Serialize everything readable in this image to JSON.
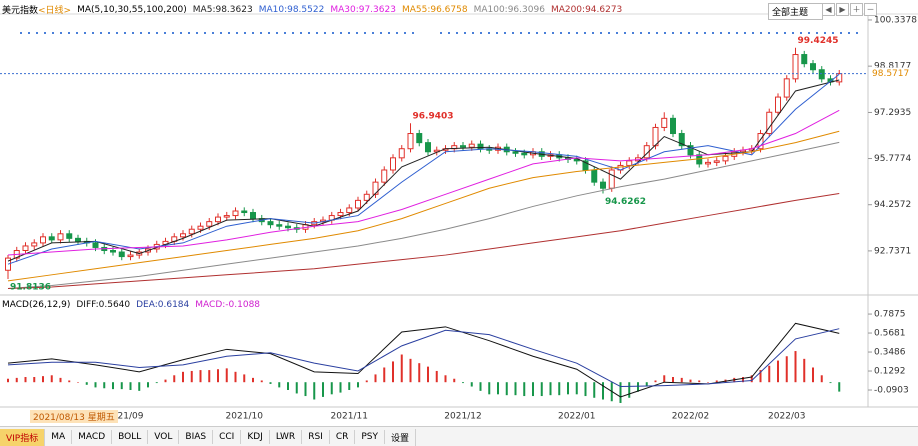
{
  "chart_data": {
    "type": "candlestick",
    "title": "美元指数",
    "period": "<日线>",
    "ma_params": "MA(5,10,30,55,100,200)",
    "theme_button": "全部主题",
    "up_color": "#e0302a",
    "down_color": "#17964a",
    "ylim": [
      91.45,
      100.6
    ],
    "yticks": [
      100.3378,
      98.8177,
      97.2935,
      95.7774,
      94.2572,
      92.7371
    ],
    "candles": {
      "open": [
        92.1,
        92.5,
        92.75,
        92.9,
        93.0,
        93.2,
        93.1,
        93.3,
        93.15,
        93.05,
        93.0,
        92.85,
        92.75,
        92.7,
        92.55,
        92.6,
        92.7,
        92.8,
        92.95,
        93.05,
        93.2,
        93.3,
        93.45,
        93.55,
        93.7,
        93.85,
        93.9,
        94.05,
        94.0,
        93.8,
        93.7,
        93.6,
        93.55,
        93.5,
        93.45,
        93.6,
        93.7,
        93.75,
        93.9,
        94.0,
        94.15,
        94.4,
        94.6,
        95.0,
        95.4,
        95.8,
        96.1,
        96.6,
        96.3,
        96.0,
        96.05,
        96.1,
        96.2,
        96.15,
        96.25,
        96.1,
        96.05,
        96.15,
        96.0,
        95.95,
        95.9,
        96.0,
        95.85,
        95.9,
        95.8,
        95.75,
        95.7,
        95.4,
        95.0,
        94.8,
        95.4,
        95.55,
        95.7,
        95.8,
        96.2,
        96.8,
        97.1,
        96.6,
        96.2,
        95.9,
        95.6,
        95.65,
        95.7,
        95.85,
        96.0,
        96.05,
        96.1,
        96.6,
        97.3,
        97.8,
        98.4,
        99.2,
        98.9,
        98.7,
        98.4,
        98.3
      ],
      "high": [
        92.6,
        92.87,
        93.02,
        93.12,
        93.32,
        93.32,
        93.42,
        93.42,
        93.27,
        93.17,
        93.12,
        92.97,
        92.87,
        92.82,
        92.72,
        92.82,
        92.92,
        93.07,
        93.17,
        93.32,
        93.42,
        93.57,
        93.67,
        93.82,
        93.97,
        94.02,
        94.17,
        94.17,
        94.12,
        93.92,
        93.82,
        93.72,
        93.67,
        93.62,
        93.72,
        93.82,
        93.87,
        94.02,
        94.12,
        94.27,
        94.52,
        94.72,
        95.12,
        95.52,
        95.92,
        96.22,
        96.9403,
        96.72,
        96.42,
        96.17,
        96.22,
        96.32,
        96.32,
        96.37,
        96.37,
        96.22,
        96.27,
        96.27,
        96.12,
        96.07,
        96.12,
        96.12,
        96.02,
        96.02,
        95.92,
        95.87,
        95.82,
        95.52,
        95.12,
        95.52,
        95.67,
        95.82,
        95.92,
        96.32,
        96.92,
        97.3,
        97.22,
        96.72,
        96.32,
        96.02,
        95.77,
        95.82,
        95.97,
        96.12,
        96.17,
        96.22,
        96.72,
        97.42,
        97.92,
        98.52,
        99.4245,
        99.32,
        99.02,
        98.82,
        98.52,
        98.69
      ],
      "low": [
        91.8136,
        92.38,
        92.63,
        92.78,
        92.88,
        92.98,
        92.98,
        93.03,
        92.93,
        92.88,
        92.73,
        92.63,
        92.58,
        92.43,
        92.43,
        92.48,
        92.58,
        92.68,
        92.83,
        92.93,
        93.08,
        93.18,
        93.33,
        93.43,
        93.58,
        93.73,
        93.78,
        93.88,
        93.68,
        93.58,
        93.48,
        93.43,
        93.38,
        93.33,
        93.33,
        93.48,
        93.58,
        93.63,
        93.78,
        93.88,
        94.03,
        94.28,
        94.48,
        94.88,
        95.28,
        95.68,
        95.98,
        96.18,
        95.88,
        95.88,
        95.93,
        95.98,
        96.03,
        96.03,
        95.98,
        95.93,
        95.93,
        95.88,
        95.83,
        95.78,
        95.78,
        95.73,
        95.73,
        95.68,
        95.63,
        95.58,
        95.28,
        94.88,
        94.6262,
        94.68,
        95.28,
        95.43,
        95.58,
        95.68,
        96.08,
        96.68,
        96.48,
        96.08,
        95.78,
        95.48,
        95.48,
        95.53,
        95.58,
        95.73,
        95.88,
        95.93,
        95.98,
        96.48,
        97.18,
        97.68,
        98.28,
        98.78,
        98.58,
        98.28,
        98.18,
        98.18
      ],
      "close": [
        92.5,
        92.75,
        92.9,
        93.0,
        93.2,
        93.1,
        93.3,
        93.15,
        93.05,
        93.0,
        92.85,
        92.75,
        92.7,
        92.55,
        92.6,
        92.7,
        92.8,
        92.95,
        93.05,
        93.2,
        93.3,
        93.45,
        93.55,
        93.7,
        93.85,
        93.9,
        94.05,
        94.0,
        93.8,
        93.7,
        93.6,
        93.55,
        93.5,
        93.45,
        93.6,
        93.7,
        93.75,
        93.9,
        94.0,
        94.15,
        94.4,
        94.6,
        95.0,
        95.4,
        95.8,
        96.1,
        96.6,
        96.3,
        96.0,
        96.05,
        96.1,
        96.2,
        96.15,
        96.25,
        96.1,
        96.05,
        96.15,
        96.0,
        95.95,
        95.9,
        96.0,
        95.85,
        95.9,
        95.8,
        95.75,
        95.7,
        95.4,
        95.0,
        94.8,
        95.4,
        95.55,
        95.7,
        95.8,
        96.2,
        96.8,
        97.1,
        96.6,
        96.2,
        95.9,
        95.6,
        95.65,
        95.7,
        95.85,
        96.0,
        96.05,
        96.1,
        96.6,
        97.3,
        97.8,
        98.4,
        99.2,
        98.9,
        98.7,
        98.4,
        98.3,
        98.5717
      ]
    },
    "sample_index": [
      0,
      5,
      10,
      15,
      20,
      25,
      30,
      35,
      40,
      45,
      50,
      55,
      60,
      65,
      70,
      75,
      80,
      85,
      90,
      95
    ],
    "series": [
      {
        "name": "MA5:98.3623",
        "color": "#222222",
        "values": [
          92.4,
          93.0,
          93.05,
          92.65,
          93.15,
          93.75,
          93.8,
          93.55,
          94.05,
          95.5,
          96.1,
          96.15,
          95.95,
          95.78,
          95.1,
          96.5,
          95.9,
          96.0,
          98.0,
          98.3623
        ]
      },
      {
        "name": "MA10:98.5522",
        "color": "#2f5fd0",
        "values": [
          92.3,
          92.8,
          93.05,
          92.8,
          93.0,
          93.55,
          93.8,
          93.65,
          93.9,
          95.0,
          96.0,
          96.1,
          96.0,
          95.85,
          95.4,
          96.0,
          96.2,
          95.9,
          97.4,
          98.5522
        ]
      },
      {
        "name": "MA30:97.3623",
        "color": "#e020e0",
        "values": [
          92.6,
          92.7,
          92.8,
          92.85,
          92.9,
          93.1,
          93.35,
          93.55,
          93.7,
          94.1,
          94.6,
          95.1,
          95.6,
          95.8,
          95.7,
          95.8,
          95.9,
          96.1,
          96.6,
          97.3623
        ]
      },
      {
        "name": "MA55:96.6758",
        "color": "#e08a00",
        "values": [
          91.75,
          91.95,
          92.15,
          92.35,
          92.55,
          92.75,
          92.95,
          93.15,
          93.4,
          93.8,
          94.3,
          94.8,
          95.15,
          95.35,
          95.5,
          95.65,
          95.8,
          96.0,
          96.3,
          96.6758
        ]
      },
      {
        "name": "MA100:96.3096",
        "color": "#8a8a8a",
        "values": [
          91.5,
          91.6,
          91.75,
          91.9,
          92.1,
          92.3,
          92.5,
          92.7,
          92.9,
          93.15,
          93.45,
          93.8,
          94.2,
          94.55,
          94.85,
          95.1,
          95.4,
          95.7,
          96.0,
          96.3096
        ]
      },
      {
        "name": "MA200:94.6273",
        "color": "#b03030",
        "values": [
          91.5,
          91.55,
          91.65,
          91.75,
          91.85,
          91.95,
          92.05,
          92.15,
          92.3,
          92.45,
          92.6,
          92.8,
          93.0,
          93.2,
          93.4,
          93.65,
          93.9,
          94.15,
          94.4,
          94.6273
        ]
      }
    ],
    "date_label": "2021/08/13 星期五",
    "x_labels": [
      {
        "index": 14,
        "label": "21/09"
      },
      {
        "index": 27,
        "label": "2021/10"
      },
      {
        "index": 39,
        "label": "2021/11"
      },
      {
        "index": 52,
        "label": "2021/12"
      },
      {
        "index": 65,
        "label": "2022/01"
      },
      {
        "index": 78,
        "label": "2022/02"
      },
      {
        "index": 89,
        "label": "2022/03"
      }
    ],
    "macd": {
      "title": "MACD(26,12,9)",
      "ylim": [
        -0.275,
        0.95
      ],
      "yticks": [
        0.7875,
        0.5681,
        0.3486,
        0.1292,
        -0.0903
      ],
      "series": [
        {
          "name": "DIFF:0.5640",
          "color": "#111111",
          "values": [
            0.22,
            0.27,
            0.2,
            0.12,
            0.26,
            0.38,
            0.33,
            0.12,
            0.1,
            0.58,
            0.64,
            0.48,
            0.3,
            0.15,
            -0.17,
            0.0,
            -0.02,
            0.06,
            0.68,
            0.564
          ]
        },
        {
          "name": "DEA:0.6184",
          "color": "#2a3fa0",
          "values": [
            0.2,
            0.23,
            0.23,
            0.17,
            0.2,
            0.3,
            0.34,
            0.22,
            0.13,
            0.42,
            0.6,
            0.55,
            0.38,
            0.22,
            -0.05,
            -0.04,
            -0.02,
            0.02,
            0.5,
            0.6184
          ]
        }
      ],
      "hist": {
        "name": "MACD:-0.1088",
        "color": "#d020d0",
        "values": [
          0.04,
          0.05,
          0.06,
          0.06,
          0.07,
          0.08,
          0.05,
          0.02,
          0.0,
          -0.03,
          -0.06,
          -0.07,
          -0.08,
          -0.08,
          -0.09,
          -0.1,
          -0.06,
          -0.01,
          0.03,
          0.08,
          0.12,
          0.13,
          0.14,
          0.14,
          0.15,
          0.16,
          0.12,
          0.09,
          0.05,
          0.02,
          -0.02,
          -0.06,
          -0.09,
          -0.13,
          -0.16,
          -0.2,
          -0.17,
          -0.14,
          -0.12,
          -0.09,
          -0.06,
          0.02,
          0.09,
          0.17,
          0.24,
          0.32,
          0.27,
          0.22,
          0.18,
          0.13,
          0.08,
          0.04,
          -0.01,
          -0.05,
          -0.1,
          -0.14,
          -0.14,
          -0.15,
          -0.15,
          -0.16,
          -0.16,
          -0.16,
          -0.15,
          -0.15,
          -0.14,
          -0.14,
          -0.16,
          -0.18,
          -0.2,
          -0.22,
          -0.24,
          -0.18,
          -0.11,
          -0.05,
          0.02,
          0.08,
          0.06,
          0.05,
          0.03,
          0.02,
          0.0,
          0.02,
          0.03,
          0.05,
          0.06,
          0.08,
          0.14,
          0.19,
          0.25,
          0.3,
          0.36,
          0.27,
          0.17,
          0.08,
          -0.01,
          -0.1088
        ]
      }
    },
    "toolbar": [
      "VIP指标",
      "MA",
      "MACD",
      "BOLL",
      "VOL",
      "BIAS",
      "CCI",
      "KDJ",
      "LWR",
      "RSI",
      "CR",
      "PSY",
      "设置"
    ]
  }
}
